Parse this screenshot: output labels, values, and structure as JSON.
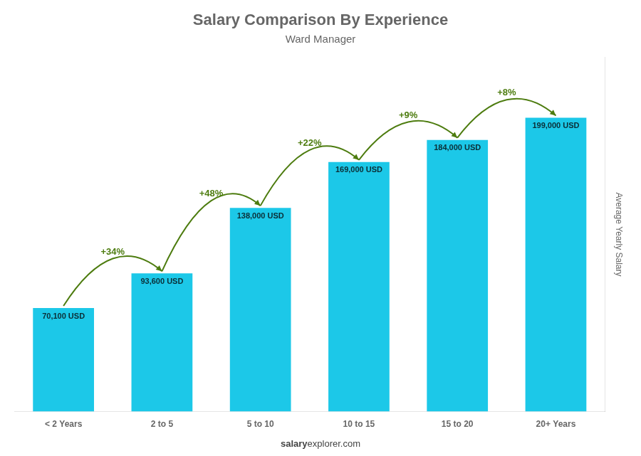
{
  "chart_data": {
    "type": "bar",
    "title": "Salary Comparison By Experience",
    "subtitle": "Ward Manager",
    "categories": [
      "< 2 Years",
      "2 to 5",
      "5 to 10",
      "10 to 15",
      "15 to 20",
      "20+ Years"
    ],
    "values": [
      70100,
      93600,
      138000,
      169000,
      184000,
      199000
    ],
    "value_labels": [
      "70,100 USD",
      "93,600 USD",
      "138,000 USD",
      "169,000 USD",
      "184,000 USD",
      "199,000 USD"
    ],
    "data_labels": true,
    "annotations": [
      "+34%",
      "+48%",
      "+22%",
      "+9%",
      "+8%"
    ],
    "ylabel": "Average Yearly Salary",
    "footer": [
      "salary",
      "explorer.com"
    ],
    "color": "#1CC8E8",
    "ylim": [
      0,
      240000
    ],
    "tick_labels": "x",
    "grid": false
  }
}
